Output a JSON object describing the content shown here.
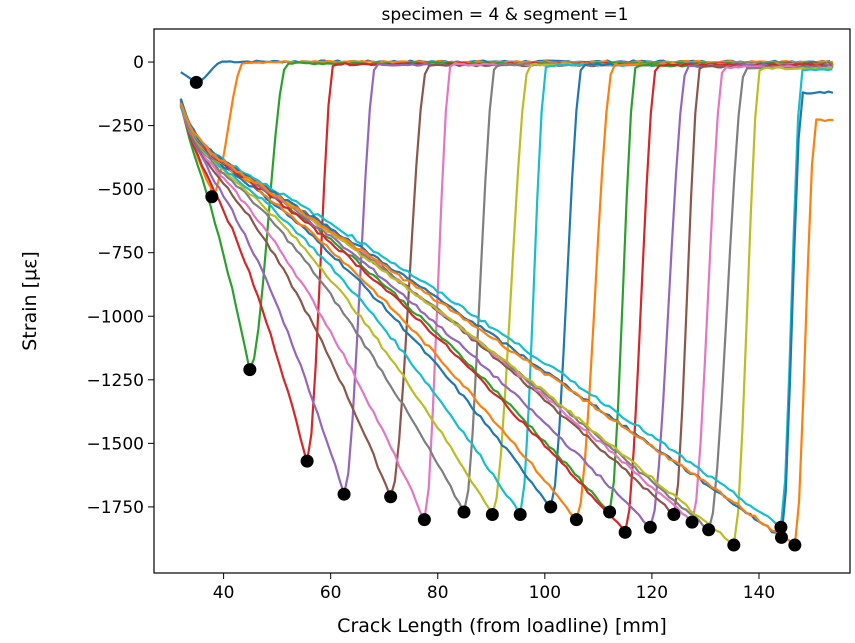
{
  "chart_data": {
    "type": "line",
    "title": "specimen = 4 & segment =1",
    "xlabel": "Crack Length (from loadline) [mm]",
    "ylabel": "Strain [με]",
    "xlim": [
      27,
      157
    ],
    "ylim": [
      -2010,
      130
    ],
    "xticks": [
      40,
      60,
      80,
      100,
      120,
      140
    ],
    "yticks": [
      0,
      -250,
      -500,
      -750,
      -1000,
      -1250,
      -1500,
      -1750
    ],
    "xtick_labels": [
      "40",
      "60",
      "80",
      "100",
      "120",
      "140"
    ],
    "ytick_labels": [
      "0",
      "−250",
      "−500",
      "−750",
      "−1000",
      "−1250",
      "−1500",
      "−1750"
    ],
    "grid": false,
    "legend": "none",
    "x_start": 32,
    "x_end": 154,
    "colors": [
      "#1f77b4",
      "#ff7f0e",
      "#2ca02c",
      "#d62728",
      "#9467bd",
      "#8c564b",
      "#e377c2",
      "#7f7f7f",
      "#bcbd22",
      "#17becf"
    ],
    "series": [
      {
        "min_point": [
          34.9,
          -80
        ],
        "recover_end": 2
      },
      {
        "min_point": [
          37.8,
          -530
        ],
        "recover_end": 0
      },
      {
        "min_point": [
          44.9,
          -1210
        ],
        "recover_end": -5
      },
      {
        "min_point": [
          55.6,
          -1570
        ],
        "recover_end": -8
      },
      {
        "min_point": [
          62.5,
          -1700
        ],
        "recover_end": -10
      },
      {
        "min_point": [
          71.2,
          -1710
        ],
        "recover_end": -12
      },
      {
        "min_point": [
          77.5,
          -1800
        ],
        "recover_end": -10
      },
      {
        "min_point": [
          84.9,
          -1770
        ],
        "recover_end": -8
      },
      {
        "min_point": [
          90.2,
          -1780
        ],
        "recover_end": -10
      },
      {
        "min_point": [
          95.4,
          -1780
        ],
        "recover_end": -12
      },
      {
        "min_point": [
          101.1,
          -1750
        ],
        "recover_end": -10
      },
      {
        "min_point": [
          105.9,
          -1800
        ],
        "recover_end": -12
      },
      {
        "min_point": [
          112.1,
          -1770
        ],
        "recover_end": -15
      },
      {
        "min_point": [
          115.0,
          -1850
        ],
        "recover_end": -12
      },
      {
        "min_point": [
          119.7,
          -1830
        ],
        "recover_end": -15
      },
      {
        "min_point": [
          124.1,
          -1780
        ],
        "recover_end": -18
      },
      {
        "min_point": [
          127.5,
          -1810
        ],
        "recover_end": -20
      },
      {
        "min_point": [
          130.6,
          -1840
        ],
        "recover_end": -22
      },
      {
        "min_point": [
          135.3,
          -1900
        ],
        "recover_end": -25
      },
      {
        "min_point": [
          144.1,
          -1830
        ],
        "recover_end": -30
      },
      {
        "min_point": [
          144.2,
          -1870
        ],
        "recover_end": -120
      },
      {
        "min_point": [
          146.7,
          -1900
        ],
        "recover_end": -230
      }
    ]
  }
}
